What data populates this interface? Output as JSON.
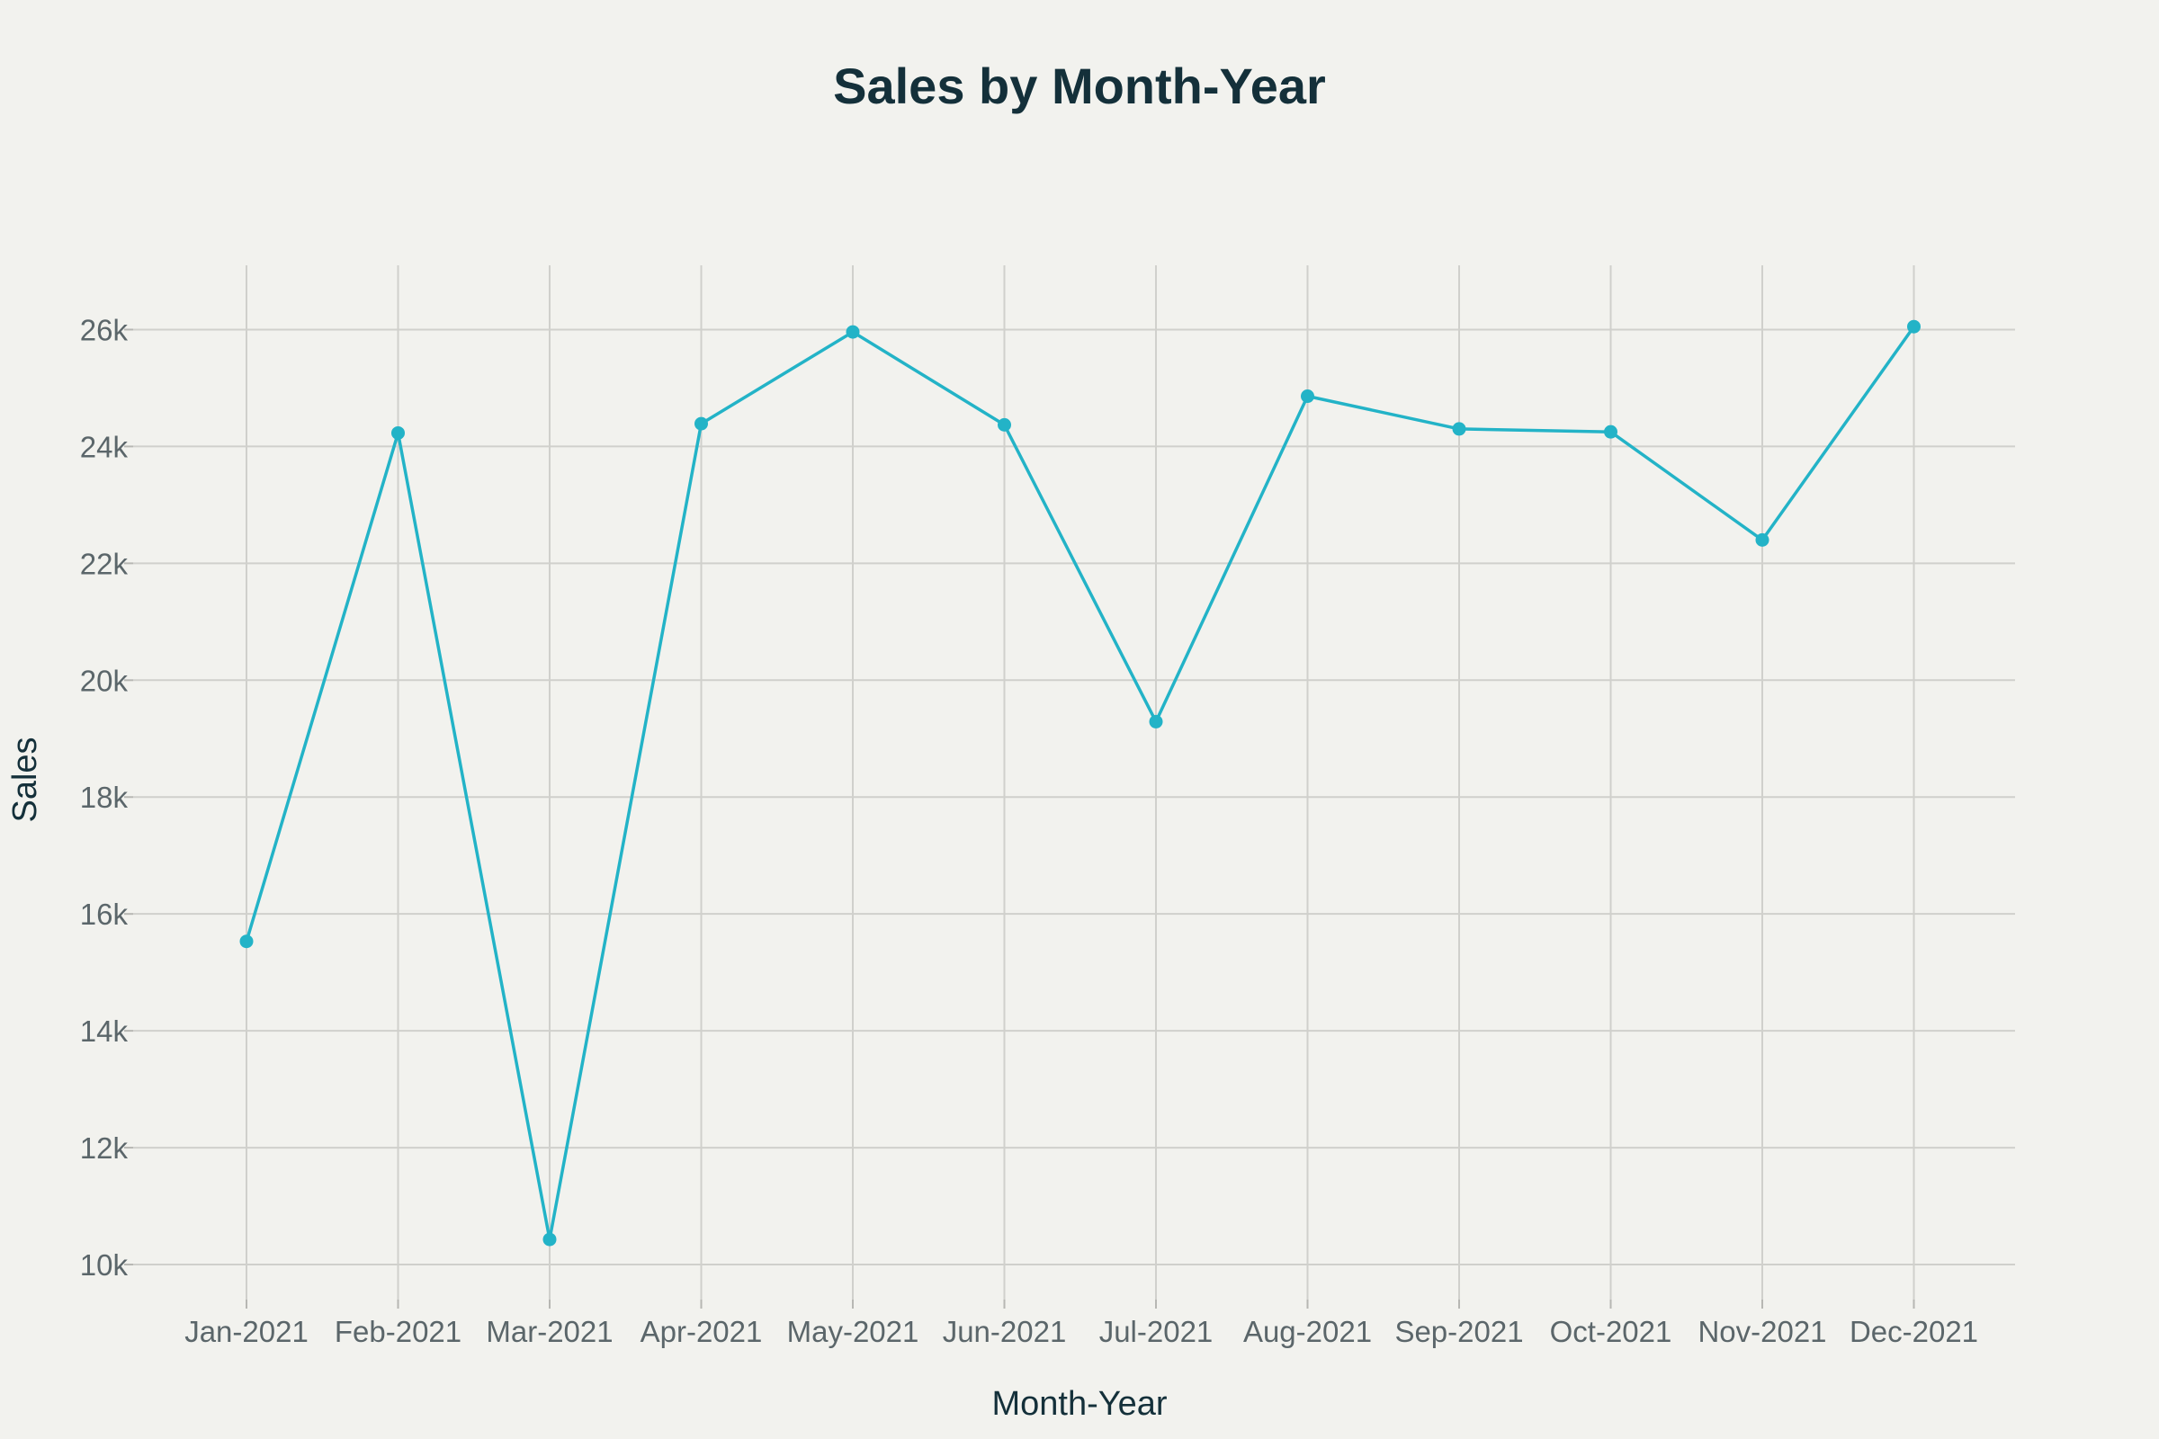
{
  "chart_data": {
    "type": "line",
    "title": "Sales by Month-Year",
    "xlabel": "Month-Year",
    "ylabel": "Sales",
    "categories": [
      "Jan-2021",
      "Feb-2021",
      "Mar-2021",
      "Apr-2021",
      "May-2021",
      "Jun-2021",
      "Jul-2021",
      "Aug-2021",
      "Sep-2021",
      "Oct-2021",
      "Nov-2021",
      "Dec-2021"
    ],
    "series": [
      {
        "values": [
          15530,
          24230,
          10430,
          24390,
          25960,
          24370,
          19290,
          24860,
          24300,
          24250,
          22400,
          26050
        ],
        "color": "#23b3c7"
      }
    ],
    "yticks": [
      10000,
      12000,
      14000,
      16000,
      18000,
      20000,
      22000,
      24000,
      26000
    ],
    "ytick_labels": [
      "10k",
      "12k",
      "14k",
      "16k",
      "18k",
      "20k",
      "22k",
      "24k",
      "26k"
    ],
    "ylim": [
      9400,
      27100
    ],
    "grid": true,
    "legend": "none",
    "markers": true
  }
}
